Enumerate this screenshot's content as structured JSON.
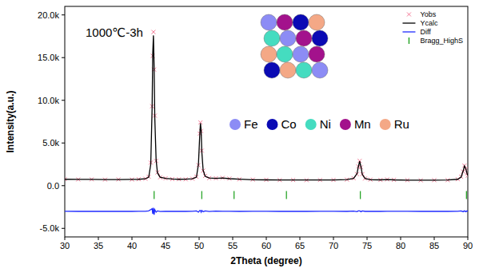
{
  "chart_data": {
    "type": "line",
    "x_label": "2Theta (degree)",
    "y_label": "Intensity(a.u.)",
    "annotations": [
      "1000℃-3h"
    ],
    "inset_legend": [
      {
        "name": "Fe",
        "color": "#8c8cf5"
      },
      {
        "name": "Co",
        "color": "#0a0ab4"
      },
      {
        "name": "Ni",
        "color": "#45dcc0"
      },
      {
        "name": "Mn",
        "color": "#a3128c"
      },
      {
        "name": "Ru",
        "color": "#f4a886"
      }
    ],
    "x": [
      30,
      32,
      34,
      36,
      38,
      40,
      41,
      42,
      42.5,
      42.8,
      43.0,
      43.1,
      43.2,
      43.3,
      43.4,
      43.6,
      43.8,
      44.2,
      45,
      46,
      47,
      48,
      49,
      49.6,
      49.9,
      50.1,
      50.2,
      50.3,
      50.4,
      50.6,
      50.9,
      51.5,
      52.5,
      53.5,
      54.5,
      56,
      58,
      60,
      62,
      64,
      66,
      68,
      70,
      72,
      73,
      73.5,
      73.7,
      73.9,
      74.1,
      74.3,
      74.7,
      75.5,
      77,
      78,
      79,
      81,
      83,
      85,
      87,
      88.5,
      89,
      89.3,
      89.5,
      89.7,
      89.9,
      90
    ],
    "series": [
      {
        "name": "Yobs",
        "type": "scatter",
        "marker": "x",
        "color": "#f47a96",
        "values": [
          760,
          730,
          740,
          710,
          730,
          720,
          760,
          810,
          1050,
          2700,
          9300,
          15200,
          18000,
          13600,
          8200,
          2900,
          1550,
          980,
          860,
          770,
          760,
          750,
          810,
          1050,
          2400,
          6100,
          7400,
          6400,
          4100,
          1750,
          1150,
          880,
          870,
          910,
          830,
          750,
          710,
          690,
          660,
          670,
          650,
          670,
          680,
          710,
          870,
          1350,
          2250,
          2900,
          2150,
          1350,
          840,
          710,
          670,
          730,
          690,
          650,
          630,
          650,
          650,
          760,
          1050,
          1650,
          2350,
          1950,
          1450,
          1180
        ]
      },
      {
        "name": "Ycalc",
        "type": "line",
        "line_style": "solid",
        "color": "#000000",
        "values": [
          750,
          740,
          730,
          720,
          720,
          730,
          750,
          800,
          1000,
          2500,
          9000,
          15500,
          17600,
          14000,
          8000,
          3000,
          1500,
          1000,
          850,
          780,
          750,
          760,
          800,
          1000,
          2500,
          6000,
          7300,
          6500,
          4000,
          1800,
          1100,
          900,
          850,
          900,
          820,
          760,
          700,
          680,
          670,
          660,
          660,
          660,
          670,
          720,
          850,
          1400,
          2200,
          2850,
          2200,
          1300,
          850,
          700,
          680,
          720,
          680,
          640,
          640,
          640,
          660,
          750,
          1000,
          1700,
          2300,
          2000,
          1400,
          1200
        ]
      },
      {
        "name": "Diff",
        "type": "line",
        "line_style": "solid",
        "color": "#1f2bff",
        "values": [
          -2990,
          -3010,
          -2990,
          -3010,
          -2990,
          -3010,
          -2990,
          -2990,
          -2950,
          -2800,
          -2700,
          -3300,
          -2600,
          -3400,
          -2800,
          -3100,
          -2950,
          -3020,
          -2990,
          -3010,
          -2990,
          -3010,
          -2990,
          -2950,
          -3100,
          -2900,
          -2900,
          -3100,
          -2900,
          -3050,
          -2950,
          -3020,
          -2980,
          -2990,
          -2990,
          -3010,
          -2990,
          -2990,
          -3010,
          -2990,
          -3010,
          -2990,
          -2990,
          -3010,
          -2980,
          -3050,
          -2950,
          -2950,
          -3050,
          -2950,
          -3010,
          -2990,
          -3010,
          -2990,
          -2990,
          -2990,
          -3010,
          -2990,
          -3010,
          -2990,
          -2950,
          -3050,
          -2950,
          -3050,
          -2950,
          -3020
        ]
      },
      {
        "name": "Bragg_HighS",
        "type": "scatter",
        "marker": "vline",
        "color": "#2aa62a",
        "x": [
          43.3,
          50.4,
          55.2,
          63.0,
          74.0,
          89.8
        ],
        "values": [
          -1100,
          -1100,
          -1100,
          -1100,
          -1100,
          -1100
        ]
      }
    ],
    "xlim": [
      30,
      90
    ],
    "xticks": [
      30,
      35,
      40,
      45,
      50,
      55,
      60,
      65,
      70,
      75,
      80,
      85,
      90
    ],
    "ylim": [
      -6000,
      21000
    ],
    "yticks": [
      {
        "value": -5000,
        "label": "-5.0k"
      },
      {
        "value": 0,
        "label": "0.0"
      },
      {
        "value": 5000,
        "label": "5.0k"
      },
      {
        "value": 10000,
        "label": "10.0k"
      },
      {
        "value": 15000,
        "label": "15.0k"
      },
      {
        "value": 20000,
        "label": "20.0k"
      }
    ],
    "grid": false,
    "legend": "upper right"
  }
}
